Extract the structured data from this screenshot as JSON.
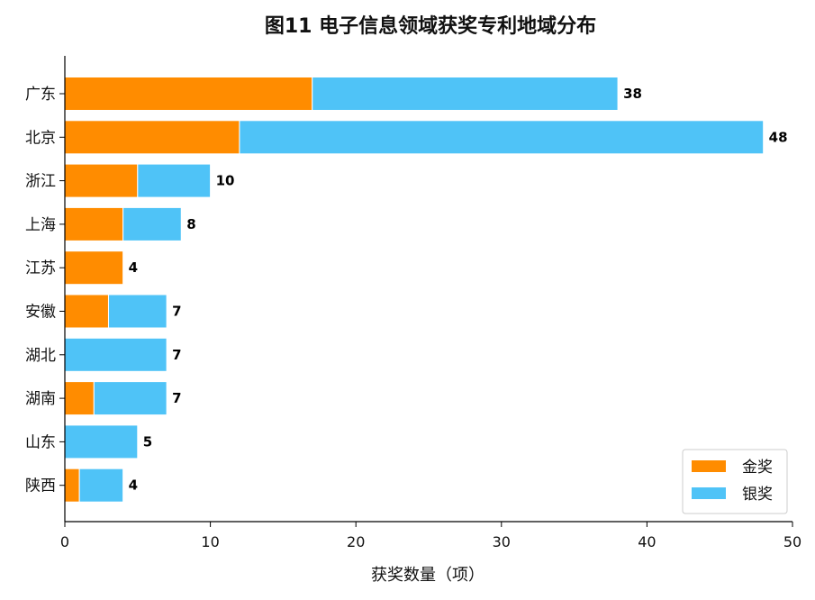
{
  "chart_data": {
    "type": "bar",
    "orientation": "horizontal",
    "stacked": true,
    "title": "图11  电子信息领域获奖专利地域分布",
    "xlabel": "获奖数量（项）",
    "ylabel": "",
    "xlim": [
      0,
      50
    ],
    "xticks": [
      0,
      10,
      20,
      30,
      40,
      50
    ],
    "grid": false,
    "legend_position": "bottom-right",
    "categories": [
      "广东",
      "北京",
      "浙江",
      "上海",
      "江苏",
      "安徽",
      "湖北",
      "湖南",
      "山东",
      "陕西"
    ],
    "series": [
      {
        "name": "金奖",
        "color": "#ff8c00",
        "values": [
          17,
          12,
          5,
          4,
          4,
          3,
          0,
          2,
          0,
          1
        ]
      },
      {
        "name": "银奖",
        "color": "#4fc3f7",
        "values": [
          21,
          36,
          5,
          4,
          0,
          4,
          7,
          5,
          5,
          3
        ]
      }
    ],
    "totals": [
      38,
      48,
      10,
      8,
      4,
      7,
      7,
      7,
      5,
      4
    ]
  }
}
